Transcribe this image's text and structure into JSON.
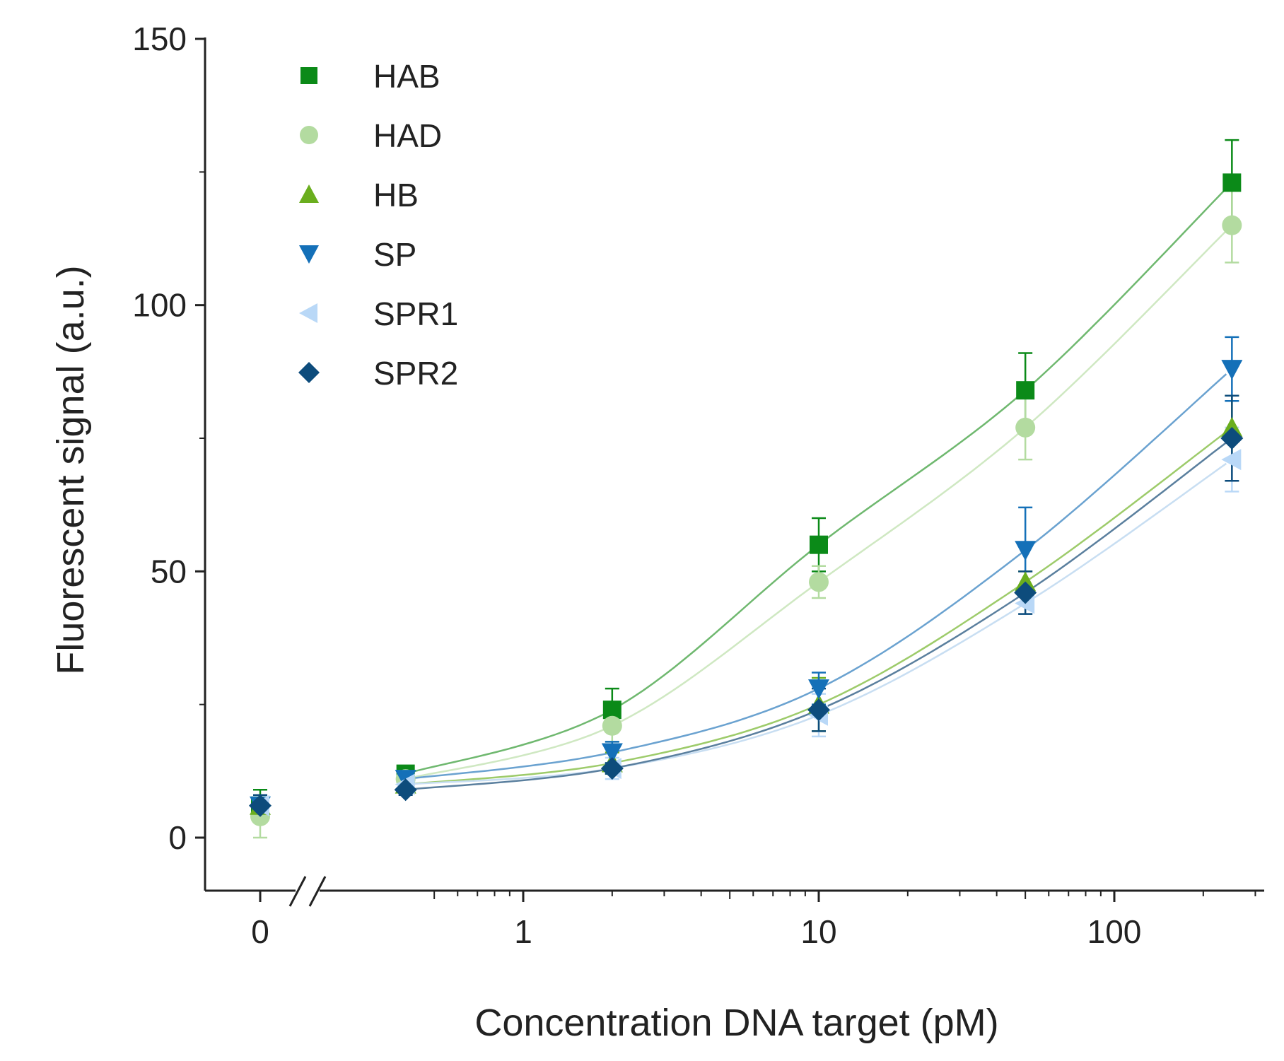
{
  "chart_data": {
    "type": "scatter",
    "title": "",
    "xlabel": "Concentration DNA target (pM)",
    "ylabel": "Fluorescent signal (a.u.)",
    "xscale": "log with broken axis at zero",
    "ylim": [
      -10,
      150
    ],
    "yticks": [
      "0",
      "50",
      "100",
      "150"
    ],
    "xticks": [
      "0",
      "1",
      "10",
      "100"
    ],
    "legend_position": "top-left",
    "x": [
      0,
      0.4,
      2,
      10,
      50,
      250
    ],
    "series": [
      {
        "name": "HAB",
        "marker": "square",
        "color": "#0b8a18",
        "fit_color": "#6fb86f",
        "values": [
          6,
          12,
          24,
          55,
          84,
          123
        ],
        "errors": [
          3,
          1,
          4,
          5,
          7,
          8
        ]
      },
      {
        "name": "HAD",
        "marker": "circle",
        "color": "#b3dba0",
        "fit_color": "#cfe8c2",
        "values": [
          4,
          11,
          21,
          48,
          77,
          115
        ],
        "errors": [
          4,
          1,
          3,
          3,
          6,
          7
        ]
      },
      {
        "name": "HB",
        "marker": "triangle-up",
        "color": "#6aae1e",
        "fit_color": "#9dcb6a",
        "values": [
          6,
          10,
          14,
          25,
          48,
          77
        ],
        "errors": [
          2,
          1,
          2,
          5,
          2,
          6
        ]
      },
      {
        "name": "SP",
        "marker": "triangle-down",
        "color": "#1470b8",
        "fit_color": "#6aa2d0",
        "values": [
          6,
          11,
          16,
          28,
          54,
          88
        ],
        "errors": [
          2,
          1,
          2,
          3,
          8,
          6
        ]
      },
      {
        "name": "SPR1",
        "marker": "triangle-left",
        "color": "#b9d8f7",
        "fit_color": "#c8def2",
        "values": [
          6,
          10,
          13,
          23,
          44,
          71
        ],
        "errors": [
          2,
          1,
          2,
          4,
          2,
          6
        ]
      },
      {
        "name": "SPR2",
        "marker": "diamond",
        "color": "#0d4c7c",
        "fit_color": "#5a7f9e",
        "values": [
          6,
          9,
          13,
          24,
          46,
          75
        ],
        "errors": [
          2,
          1,
          1,
          4,
          4,
          8
        ]
      }
    ]
  }
}
